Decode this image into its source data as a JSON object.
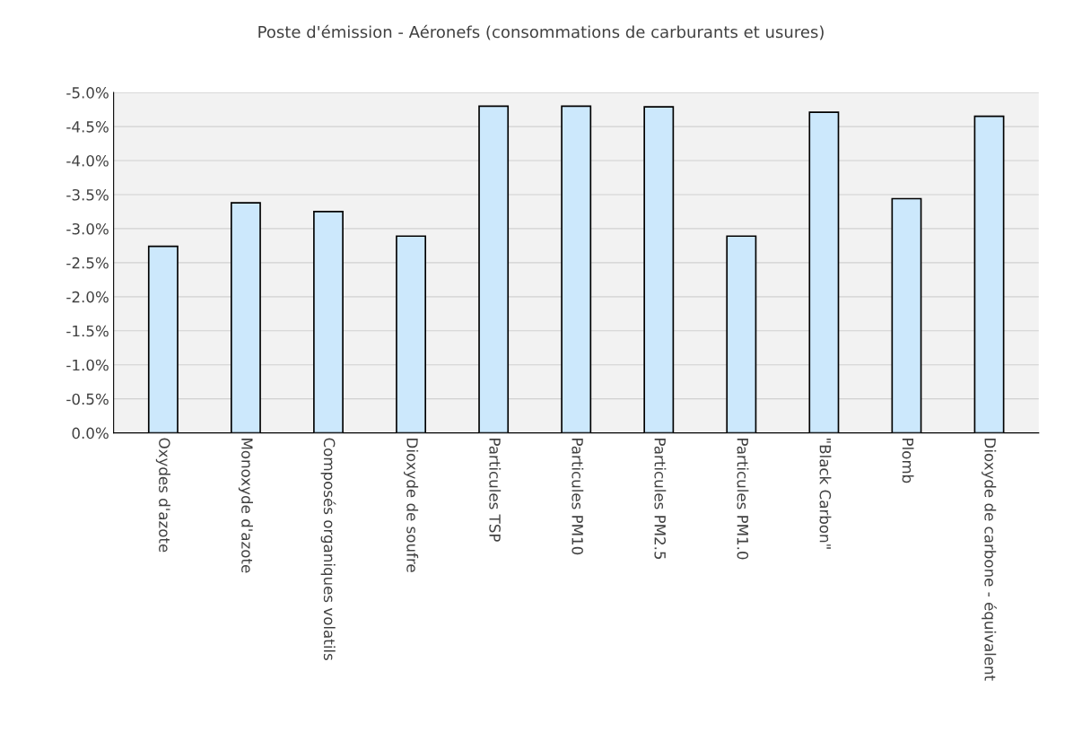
{
  "chart_data": {
    "type": "bar",
    "title": "Poste d'émission - Aéronefs (consommations de carburants et usures)",
    "categories": [
      "Oxydes d'azote",
      "Monoxyde d'azote",
      "Composés organiques volatils",
      "Dioxyde de soufre",
      "Particules TSP",
      "Particules PM10",
      "Particules PM2.5",
      "Particules PM1.0",
      "\"Black Carbon\"",
      "Plomb",
      "Dioxyde de carbone - équivalent"
    ],
    "values": [
      -2.74,
      -3.38,
      -3.25,
      -2.89,
      -4.8,
      -4.8,
      -4.79,
      -2.89,
      -4.71,
      -3.44,
      -4.65
    ],
    "color": "#cce8fc",
    "ylim": [
      0,
      -5
    ],
    "yticks": [
      {
        "value": 0,
        "label": "0.0%"
      },
      {
        "value": -0.5,
        "label": "-0.5%"
      },
      {
        "value": -1,
        "label": "-1.0%"
      },
      {
        "value": -1.5,
        "label": "-1.5%"
      },
      {
        "value": -2,
        "label": "-2.0%"
      },
      {
        "value": -2.5,
        "label": "-2.5%"
      },
      {
        "value": -3,
        "label": "-3.0%"
      },
      {
        "value": -3.5,
        "label": "-3.5%"
      },
      {
        "value": -4,
        "label": "-4.0%"
      },
      {
        "value": -4.5,
        "label": "-4.5%"
      },
      {
        "value": -5,
        "label": "-5.0%"
      }
    ],
    "grid": "y"
  }
}
